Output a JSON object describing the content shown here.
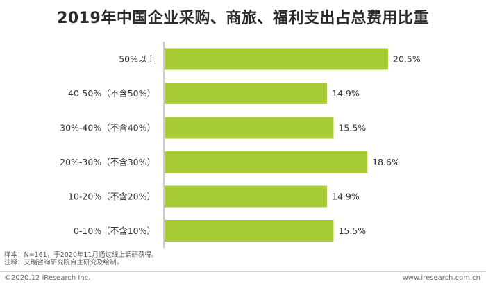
{
  "chart_data": {
    "type": "bar",
    "orientation": "horizontal",
    "title": "2019年中国企业采购、商旅、福利支出占总费用比重",
    "categories": [
      "50%以上",
      "40-50%（不含50%）",
      "30%-40%（不含40%）",
      "20%-30%（不含30%）",
      "10-20%（不含20%）",
      "0-10%（不含10%）"
    ],
    "values": [
      20.5,
      14.9,
      15.5,
      18.6,
      14.9,
      15.5
    ],
    "value_labels": [
      "20.5%",
      "14.9%",
      "15.5%",
      "18.6%",
      "14.9%",
      "15.5%"
    ],
    "unit": "%",
    "xlim": [
      0,
      20.5
    ],
    "grid": false,
    "bar_color": "#a8cc35"
  },
  "footnotes": {
    "sample": "样本：N=161，于2020年11月通过线上调研获得。",
    "note": "注释：艾瑞咨询研究院自主研究及绘制。"
  },
  "footer": {
    "copyright": "©2020.12 iResearch Inc.",
    "website": "www.iresearch.com.cn"
  }
}
